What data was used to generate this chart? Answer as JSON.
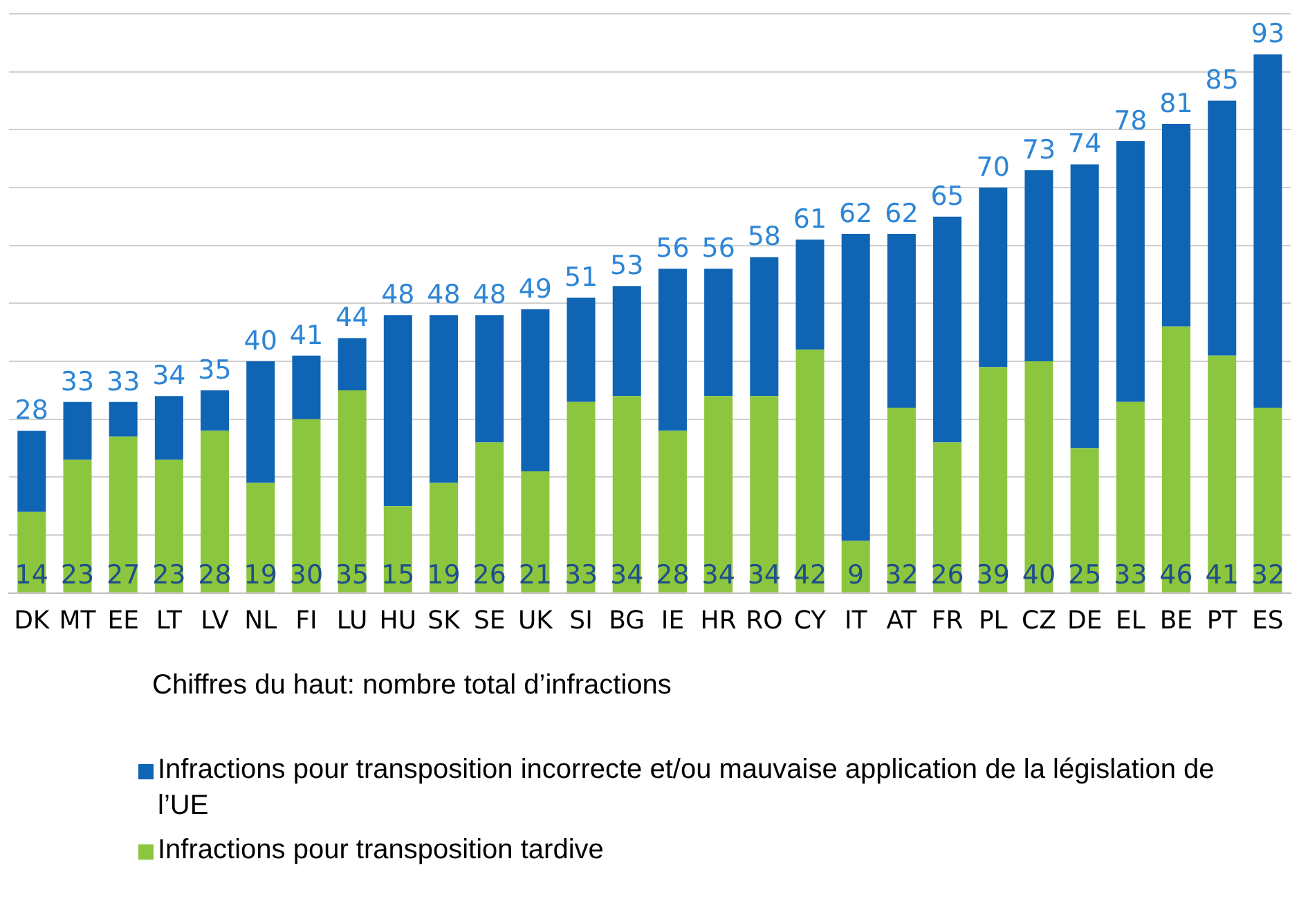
{
  "chart_data": {
    "type": "bar",
    "stacked": true,
    "categories": [
      "DK",
      "MT",
      "EE",
      "LT",
      "LV",
      "NL",
      "FI",
      "LU",
      "HU",
      "SK",
      "SE",
      "UK",
      "SI",
      "BG",
      "IE",
      "HR",
      "RO",
      "CY",
      "IT",
      "AT",
      "FR",
      "PL",
      "CZ",
      "DE",
      "EL",
      "BE",
      "PT",
      "ES"
    ],
    "series": [
      {
        "name": "Infractions pour transposition tardive",
        "color": "#8cc63e",
        "values": [
          14,
          23,
          27,
          23,
          28,
          19,
          30,
          35,
          15,
          19,
          26,
          21,
          33,
          34,
          28,
          34,
          34,
          42,
          9,
          32,
          26,
          39,
          40,
          25,
          33,
          46,
          41,
          32
        ],
        "value_labels": [
          "14",
          "23",
          "27",
          "23",
          "28",
          "19",
          "30",
          "35",
          "15",
          "19",
          "26",
          "21",
          "33",
          "34",
          "28",
          "34",
          "34",
          "42",
          "9",
          "32",
          "26",
          "39",
          "40",
          "25",
          "33",
          "46",
          "41",
          "32"
        ]
      },
      {
        "name": "Infractions pour transposition incorrecte et/ou mauvaise application de la législation de l’UE",
        "color": "#0f64b4",
        "values": [
          14,
          10,
          6,
          11,
          7,
          21,
          11,
          9,
          33,
          29,
          22,
          28,
          18,
          19,
          28,
          22,
          24,
          19,
          53,
          30,
          39,
          31,
          33,
          49,
          45,
          35,
          44,
          61
        ]
      }
    ],
    "totals": [
      "28",
      "33",
      "33",
      "34",
      "35",
      "40",
      "41",
      "44",
      "48",
      "48",
      "48",
      "49",
      "51",
      "53",
      "56",
      "56",
      "58",
      "61",
      "62",
      "62",
      "65",
      "70",
      "73",
      "74",
      "78",
      "81",
      "85",
      "93"
    ],
    "ylim": [
      0,
      100
    ],
    "yticks": [
      {
        "value": 0,
        "label": null
      },
      {
        "value": 10,
        "label": null
      },
      {
        "value": 20,
        "label": null
      },
      {
        "value": 30,
        "label": null
      },
      {
        "value": 40,
        "label": null
      },
      {
        "value": 50,
        "label": null
      },
      {
        "value": 60,
        "label": null
      },
      {
        "value": 70,
        "label": null
      },
      {
        "value": 80,
        "label": null
      },
      {
        "value": 90,
        "label": null
      },
      {
        "value": 100,
        "label": null
      }
    ],
    "tick_labels": "x",
    "grid": "y",
    "legend": "bottom",
    "annotations": [
      "Chiffres du haut: nombre total d’infractions"
    ]
  }
}
